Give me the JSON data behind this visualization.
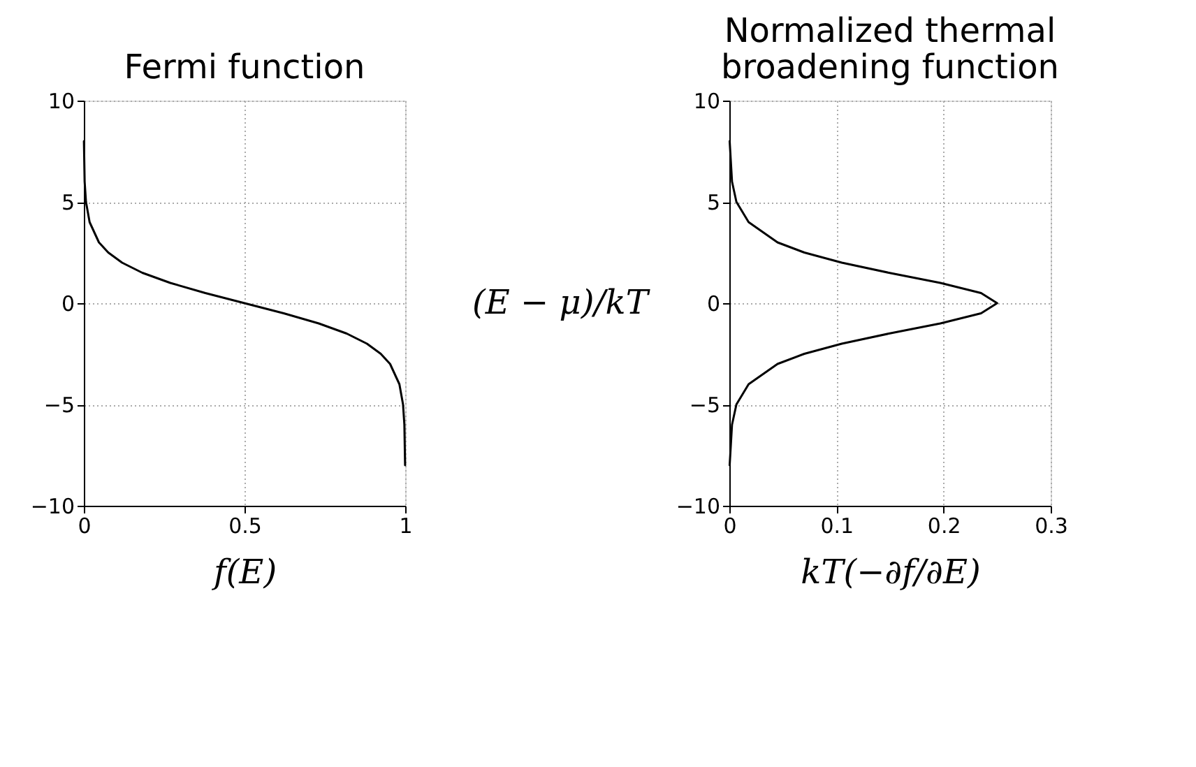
{
  "chart_data": [
    {
      "type": "line",
      "title": "Fermi function",
      "xlabel": "f(E)",
      "series": [
        {
          "color": "#000000",
          "x": [
            0.0003,
            0.0025,
            0.0067,
            0.018,
            0.047,
            0.076,
            0.119,
            0.182,
            0.269,
            0.378,
            0.5,
            0.622,
            0.731,
            0.818,
            0.881,
            0.924,
            0.953,
            0.982,
            0.9933,
            0.9975,
            0.9997
          ],
          "values": [
            8,
            6,
            5,
            4,
            3,
            2.5,
            2,
            1.5,
            1,
            0.5,
            0,
            -0.5,
            -1,
            -1.5,
            -2,
            -2.5,
            -3,
            -4,
            -5,
            -6,
            -8
          ]
        }
      ],
      "xlim": [
        0,
        1
      ],
      "xticks": [
        0,
        0.5,
        1
      ],
      "ylim": [
        -10,
        10
      ],
      "yticks": [
        -10,
        -5,
        0,
        5,
        10
      ],
      "grid": true,
      "legend": false
    },
    {
      "type": "line",
      "title": "Normalized thermal\nbroadening function",
      "xlabel": "kT(−∂f/∂E)",
      "ylabel": "(E − μ)/kT",
      "series": [
        {
          "color": "#000000",
          "x": [
            0.0003,
            0.0025,
            0.0066,
            0.018,
            0.045,
            0.07,
            0.105,
            0.149,
            0.197,
            0.235,
            0.25,
            0.235,
            0.197,
            0.149,
            0.105,
            0.07,
            0.045,
            0.018,
            0.0066,
            0.0025,
            0.0003
          ],
          "values": [
            8,
            6,
            5,
            4,
            3,
            2.5,
            2,
            1.5,
            1,
            0.5,
            0,
            -0.5,
            -1,
            -1.5,
            -2,
            -2.5,
            -3,
            -4,
            -5,
            -6,
            -8
          ]
        }
      ],
      "xlim": [
        0,
        0.3
      ],
      "xticks": [
        0,
        0.1,
        0.2,
        0.3
      ],
      "ylim": [
        -10,
        10
      ],
      "yticks": [
        -10,
        -5,
        0,
        5,
        10
      ],
      "grid": true,
      "legend": false
    }
  ]
}
